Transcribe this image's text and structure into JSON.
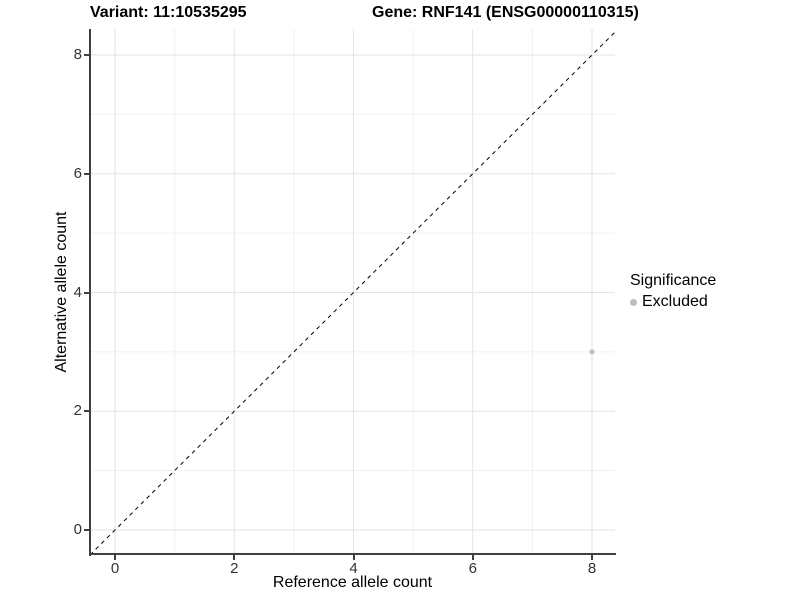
{
  "title": {
    "variant": "Variant: 11:10535295",
    "gene": "Gene: RNF141 (ENSG00000110315)"
  },
  "axes": {
    "x_label": "Reference allele count",
    "y_label": "Alternative allele count"
  },
  "legend": {
    "title": "Significance",
    "items": [
      {
        "label": "Excluded",
        "color": "#bdbdbd"
      }
    ]
  },
  "colors": {
    "background": "#ffffff",
    "axis_line": "#404040",
    "tick_text": "#333333",
    "grid_major": "#e3e3e3",
    "grid_minor": "#f0f0f0",
    "identity_line": "#000000",
    "point": "#bdbdbd"
  },
  "chart_data": {
    "type": "scatter",
    "title": "Variant: 11:10535295 / Gene: RNF141 (ENSG00000110315)",
    "xlabel": "Reference allele count",
    "ylabel": "Alternative allele count",
    "xlim": [
      -0.42,
      8.4
    ],
    "ylim": [
      -0.42,
      8.45
    ],
    "x_ticks": [
      0,
      2,
      4,
      6,
      8
    ],
    "y_ticks": [
      0,
      2,
      4,
      6,
      8
    ],
    "x_minor": [
      1,
      3,
      5,
      7
    ],
    "y_minor": [
      1,
      3,
      5,
      7
    ],
    "grid": true,
    "legend_position": "right",
    "identity_line": {
      "style": "dashed",
      "slope": 1,
      "intercept": 0,
      "color": "#000000",
      "dash": "4,4"
    },
    "series": [
      {
        "name": "Excluded",
        "color": "#bdbdbd",
        "points": [
          {
            "x": 8,
            "y": 3
          }
        ]
      }
    ]
  }
}
